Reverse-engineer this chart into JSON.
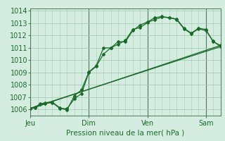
{
  "title": "Pression niveau de la mer( hPa )",
  "bg_color": "#d4ede0",
  "grid_color": "#a8ccb4",
  "line_color": "#1a6b2a",
  "spine_color": "#4a7a5a",
  "ylim": [
    1005.5,
    1014.2
  ],
  "yticks": [
    1006,
    1007,
    1008,
    1009,
    1010,
    1011,
    1012,
    1013,
    1014
  ],
  "xlim": [
    0,
    156
  ],
  "day_positions": [
    0,
    48,
    96,
    144
  ],
  "day_labels": [
    "Jeu",
    "Dim",
    "Ven",
    "Sam"
  ],
  "series1_x": [
    0,
    4,
    8,
    12,
    18,
    24,
    30,
    36,
    42,
    48,
    54,
    60,
    66,
    72,
    78,
    84,
    90,
    96,
    102,
    108,
    114,
    120,
    126,
    132,
    138,
    144,
    150,
    156
  ],
  "series1_y": [
    1006.05,
    1006.15,
    1006.4,
    1006.5,
    1006.55,
    1006.1,
    1006.05,
    1006.85,
    1007.3,
    1009.0,
    1009.5,
    1010.5,
    1011.0,
    1011.3,
    1011.6,
    1012.5,
    1012.65,
    1013.05,
    1013.3,
    1013.5,
    1013.45,
    1013.35,
    1012.6,
    1012.2,
    1012.6,
    1012.5,
    1011.5,
    1011.2
  ],
  "series2_x": [
    0,
    4,
    8,
    12,
    18,
    24,
    30,
    36,
    42,
    48,
    54,
    60,
    66,
    72,
    78,
    84,
    90,
    96,
    102,
    108,
    114,
    120,
    126,
    132,
    138,
    144,
    150,
    156
  ],
  "series2_y": [
    1006.1,
    1006.2,
    1006.45,
    1006.55,
    1006.6,
    1006.15,
    1005.95,
    1007.1,
    1007.6,
    1009.05,
    1009.55,
    1011.0,
    1011.0,
    1011.5,
    1011.5,
    1012.4,
    1012.85,
    1013.1,
    1013.45,
    1013.55,
    1013.45,
    1013.3,
    1012.55,
    1012.15,
    1012.55,
    1012.4,
    1011.55,
    1011.1
  ],
  "series3_x": [
    0,
    156
  ],
  "series3_y": [
    1006.05,
    1011.2
  ],
  "series4_x": [
    0,
    156
  ],
  "series4_y": [
    1006.1,
    1011.1
  ],
  "minor_x_step": 6
}
